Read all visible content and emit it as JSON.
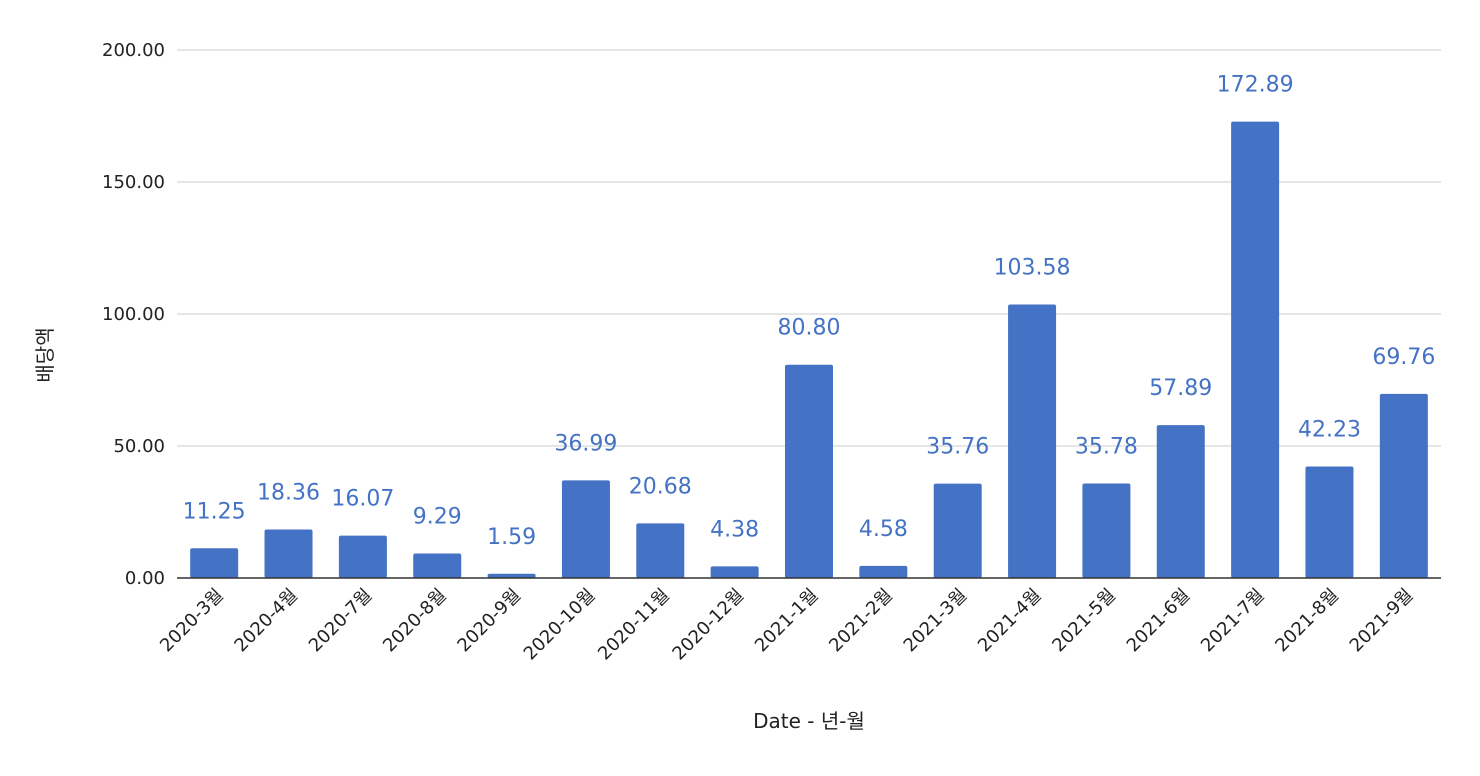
{
  "chart_data": {
    "type": "bar",
    "title": "",
    "xlabel": "Date - 년-월",
    "ylabel": "배당액",
    "ylim": [
      0,
      200
    ],
    "y_ticks": [
      "0.00",
      "50.00",
      "100.00",
      "150.00",
      "200.00"
    ],
    "y_tick_values": [
      0,
      50,
      100,
      150,
      200
    ],
    "grid": true,
    "legend": "none",
    "bar_color": "#4472c4",
    "label_color": "#4472c4",
    "categories": [
      "2020-3월",
      "2020-4월",
      "2020-7월",
      "2020-8월",
      "2020-9월",
      "2020-10월",
      "2020-11월",
      "2020-12월",
      "2021-1월",
      "2021-2월",
      "2021-3월",
      "2021-4월",
      "2021-5월",
      "2021-6월",
      "2021-7월",
      "2021-8월",
      "2021-9월"
    ],
    "values": [
      11.25,
      18.36,
      16.07,
      9.29,
      1.59,
      36.99,
      20.68,
      4.38,
      80.8,
      4.58,
      35.76,
      103.58,
      35.78,
      57.89,
      172.89,
      42.23,
      69.76
    ],
    "data_labels": [
      "11.25",
      "18.36",
      "16.07",
      "9.29",
      "1.59",
      "36.99",
      "20.68",
      "4.38",
      "80.80",
      "4.58",
      "35.76",
      "103.58",
      "35.78",
      "57.89",
      "172.89",
      "42.23",
      "69.76"
    ]
  }
}
